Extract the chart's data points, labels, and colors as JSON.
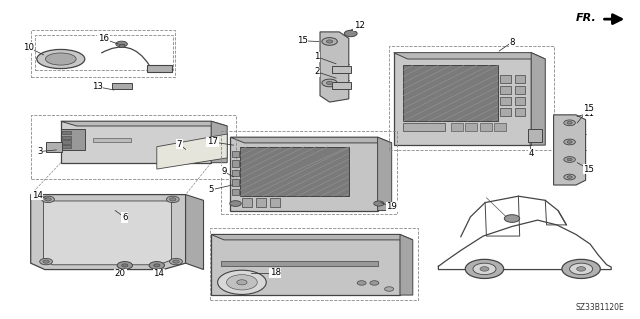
{
  "bg_color": "#ffffff",
  "diagram_code": "SZ33B1120E",
  "line_color": "#444444",
  "label_color": "#000000",
  "figsize": [
    6.4,
    3.19
  ],
  "dpi": 100
}
